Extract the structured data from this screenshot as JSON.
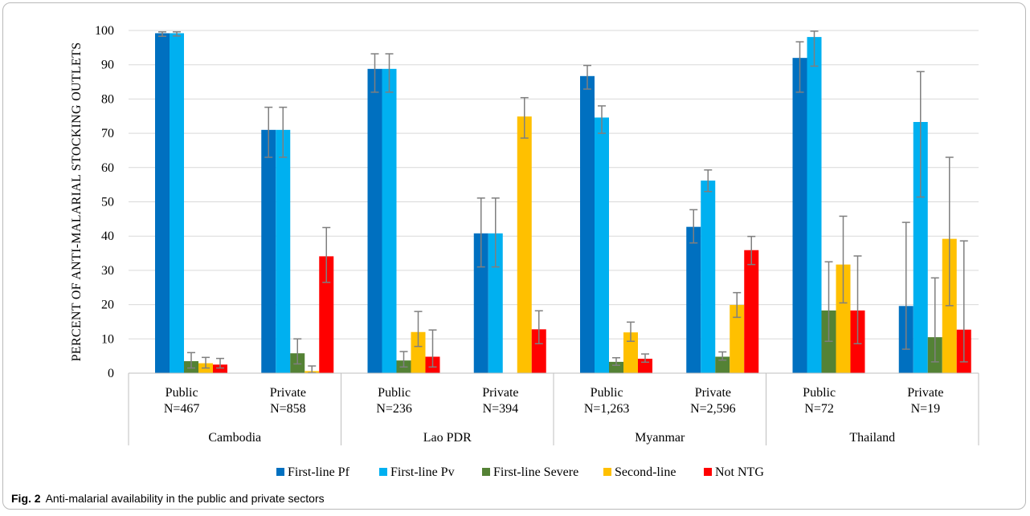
{
  "chart_data": {
    "type": "bar",
    "ylabel": "PERCENT OF ANTI-MALARIAL STOCKING OUTLETS",
    "xlabel": "",
    "ylim": [
      0,
      100
    ],
    "yticks": [
      0,
      10,
      20,
      30,
      40,
      50,
      60,
      70,
      80,
      90,
      100
    ],
    "grid": true,
    "legend_position": "bottom",
    "groups": [
      "Cambodia",
      "Lao PDR",
      "Myanmar",
      "Thailand"
    ],
    "categories": [
      {
        "sector": "Public",
        "n": "N=467",
        "group": 0
      },
      {
        "sector": "Private",
        "n": "N=858",
        "group": 0
      },
      {
        "sector": "Public",
        "n": "N=236",
        "group": 1
      },
      {
        "sector": "Private",
        "n": "N=394",
        "group": 1
      },
      {
        "sector": "Public",
        "n": "N=1,263",
        "group": 2
      },
      {
        "sector": "Private",
        "n": "N=2,596",
        "group": 2
      },
      {
        "sector": "Public",
        "n": "N=72",
        "group": 3
      },
      {
        "sector": "Private",
        "n": "N=19",
        "group": 3
      }
    ],
    "series": [
      {
        "name": "First-line Pf",
        "color": "#0070c0",
        "values": [
          99.2,
          71.0,
          88.8,
          40.8,
          86.7,
          42.7,
          92.0,
          19.6
        ],
        "error_low": [
          98.3,
          63.0,
          82.0,
          31.0,
          82.9,
          38.0,
          82.0,
          7.0
        ],
        "error_high": [
          99.6,
          77.6,
          93.2,
          51.1,
          89.8,
          47.7,
          96.7,
          44.0
        ]
      },
      {
        "name": "First-line Pv",
        "color": "#00b0f0",
        "values": [
          99.2,
          71.0,
          88.8,
          40.8,
          74.6,
          56.2,
          98.1,
          73.3
        ],
        "error_low": [
          98.4,
          63.0,
          82.0,
          31.0,
          70.0,
          53.0,
          89.6,
          51.4
        ],
        "error_high": [
          99.6,
          77.6,
          93.2,
          51.1,
          78.0,
          59.3,
          99.8,
          88.0
        ]
      },
      {
        "name": "First-line Severe",
        "color": "#548235",
        "values": [
          3.5,
          5.8,
          3.7,
          0,
          3.3,
          4.8,
          18.3,
          10.5
        ],
        "error_low": [
          1.5,
          2.7,
          1.8,
          0,
          2.3,
          3.8,
          9.3,
          3.3
        ],
        "error_high": [
          6.0,
          10.0,
          6.3,
          0,
          4.5,
          6.2,
          32.5,
          27.8
        ]
      },
      {
        "name": "Second-line",
        "color": "#ffc000",
        "values": [
          2.9,
          0.6,
          12.0,
          74.9,
          11.9,
          19.9,
          31.7,
          39.2
        ],
        "error_low": [
          1.5,
          0.1,
          7.8,
          68.6,
          9.3,
          16.3,
          20.5,
          19.7
        ],
        "error_high": [
          4.6,
          2.1,
          18.0,
          80.4,
          14.9,
          23.5,
          45.8,
          63.0
        ]
      },
      {
        "name": "Not NTG",
        "color": "#ff0000",
        "values": [
          2.5,
          34.1,
          4.8,
          12.8,
          4.2,
          35.9,
          18.3,
          12.7
        ],
        "error_low": [
          1.5,
          26.5,
          1.8,
          8.6,
          3.2,
          31.7,
          8.6,
          3.3
        ],
        "error_high": [
          4.3,
          42.5,
          12.6,
          18.2,
          5.6,
          39.9,
          34.2,
          38.6
        ]
      }
    ]
  },
  "caption": {
    "label": "Fig. 2",
    "text": "Anti-malarial availability in the public and private sectors"
  }
}
